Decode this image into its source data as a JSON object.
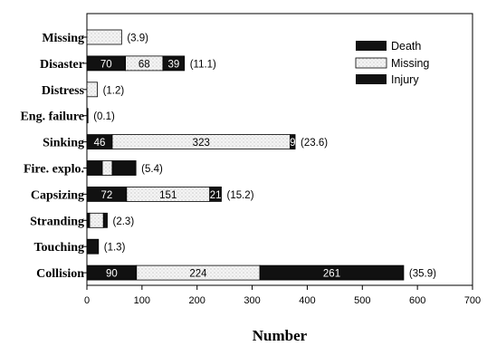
{
  "chart_data": {
    "type": "bar",
    "orientation": "horizontal",
    "stacked": true,
    "categories": [
      "Missing",
      "Disaster",
      "Distress",
      "Eng. failure",
      "Sinking",
      "Fire. explo.",
      "Capsizing",
      "Stranding",
      "Touching",
      "Collision"
    ],
    "series": [
      {
        "name": "Death",
        "values": [
          0,
          70,
          0,
          0,
          46,
          28,
          72,
          5,
          21,
          90
        ],
        "labels": [
          "",
          "70",
          "",
          "",
          "46",
          "",
          "72",
          "",
          "",
          "90"
        ]
      },
      {
        "name": "Missing",
        "values": [
          63,
          68,
          19,
          0,
          323,
          18,
          151,
          25,
          0,
          224
        ],
        "labels": [
          "",
          "68",
          "",
          "",
          "323",
          "",
          "151",
          "",
          "",
          "224"
        ]
      },
      {
        "name": "Injury",
        "values": [
          0,
          39,
          0,
          2,
          9,
          43,
          21,
          7,
          0,
          261
        ],
        "labels": [
          "",
          "39",
          "",
          "",
          "9",
          "",
          "21",
          "",
          "",
          "261"
        ]
      }
    ],
    "bar_end_labels": [
      "(3.9)",
      "(11.1)",
      "(1.2)",
      "(0.1)",
      "(23.6)",
      "(5.4)",
      "(15.2)",
      "(2.3)",
      "(1.3)",
      "(35.9)"
    ],
    "xlabel": "Number",
    "xlim": [
      0,
      700
    ],
    "xticks": [
      "0",
      "100",
      "200",
      "300",
      "400",
      "500",
      "600",
      "700"
    ],
    "legend_position": "top-right",
    "colors": {
      "Death": "#111111",
      "Missing": "#f2f2f2",
      "Injury": "#111111"
    }
  }
}
